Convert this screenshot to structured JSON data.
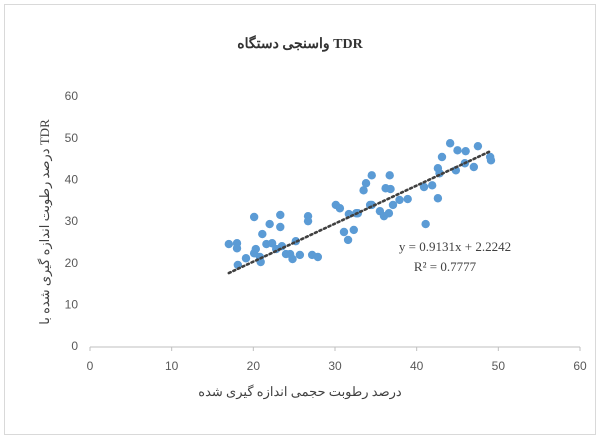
{
  "chart_data": {
    "type": "scatter",
    "title": "واسنجی دستگاه TDR",
    "x_label": "درصد رطوبت حجمی اندازه گیری شده",
    "y_label": "درصد رطوبت اندازه گیری شده با TDR",
    "color": "#5b9bd5",
    "x": [
      17.0,
      18.0,
      18.0,
      18.1,
      19.1,
      20.1,
      20.1,
      20.3,
      20.8,
      20.9,
      21.1,
      21.6,
      22.0,
      22.3,
      22.8,
      23.3,
      23.3,
      23.5,
      24.0,
      24.5,
      24.8,
      25.2,
      25.7,
      26.7,
      26.7,
      27.2,
      27.9,
      30.1,
      30.6,
      31.1,
      31.6,
      31.7,
      32.6,
      32.3,
      32.8,
      33.5,
      33.8,
      34.3,
      34.5,
      34.5,
      35.5,
      36.0,
      36.2,
      36.6,
      36.7,
      36.8,
      37.1,
      37.9,
      38.9,
      41.1,
      40.9,
      41.9,
      42.6,
      42.6,
      42.8,
      43.1,
      44.1,
      44.8,
      45.0,
      46.0,
      45.9,
      47.0,
      47.5,
      49.0,
      49.1
    ],
    "values": [
      24.7,
      24.9,
      23.7,
      19.7,
      21.3,
      31.2,
      22.5,
      23.5,
      21.6,
      20.4,
      27.1,
      24.7,
      29.5,
      24.9,
      23.5,
      28.8,
      31.7,
      24.2,
      22.3,
      22.3,
      21.1,
      25.4,
      22.1,
      31.4,
      30.2,
      22.1,
      21.6,
      34.1,
      33.3,
      27.6,
      25.7,
      31.9,
      32.1,
      28.1,
      32.1,
      37.6,
      39.3,
      34.1,
      41.2,
      34.1,
      32.6,
      31.4,
      38.1,
      32.1,
      41.2,
      37.9,
      34.1,
      35.3,
      35.5,
      29.5,
      38.4,
      38.8,
      35.7,
      42.9,
      41.7,
      45.6,
      48.9,
      42.4,
      47.2,
      47.0,
      44.1,
      43.2,
      48.2,
      45.6,
      44.8
    ],
    "trendline": {
      "slope": 0.9131,
      "intercept": 2.2242,
      "color": "#404040"
    },
    "annotations": [
      "y = 0.9131x + 2.2242",
      "R² = 0.7777"
    ],
    "xlim": [
      0,
      60
    ],
    "xticks": [
      0,
      10,
      20,
      30,
      40,
      50,
      60
    ],
    "ylim": [
      0,
      60
    ],
    "yticks": [
      0,
      10,
      20,
      30,
      40,
      50,
      60
    ],
    "grid": false
  }
}
